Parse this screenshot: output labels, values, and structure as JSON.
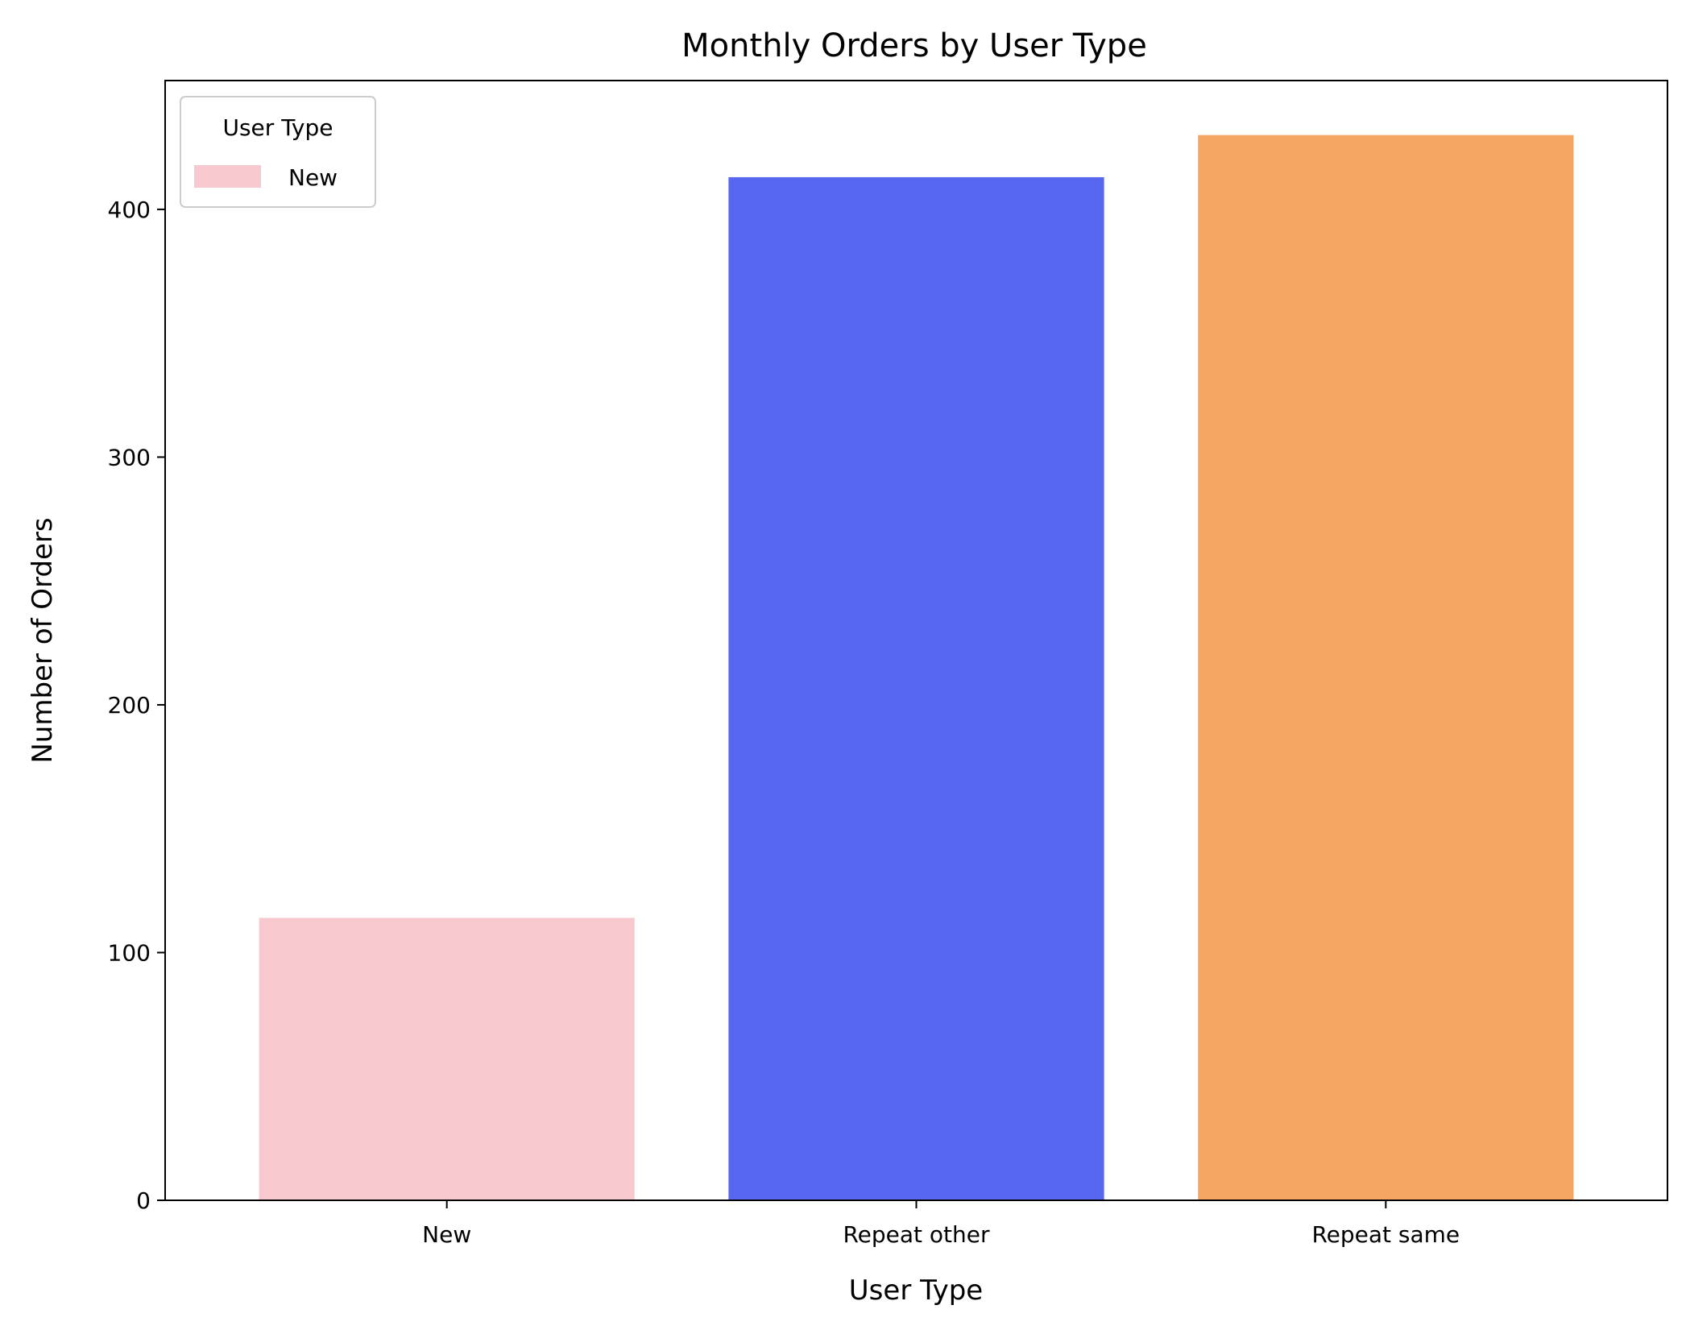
{
  "chart_data": {
    "type": "bar",
    "title": "Monthly Orders by User Type",
    "xlabel": "User Type",
    "ylabel": "Number of Orders",
    "categories": [
      "New",
      "Repeat other",
      "Repeat same"
    ],
    "values": [
      114,
      413,
      430
    ],
    "colors": [
      "#f7c9ce",
      "#5767f0",
      "#f7a563"
    ],
    "ylim": [
      0,
      452
    ],
    "yticks": [
      0,
      100,
      200,
      300,
      400
    ],
    "grid": false,
    "legend": {
      "title": "User Type",
      "placement": "top-left",
      "entries": [
        {
          "label": "New",
          "color": "#f7c9ce"
        }
      ]
    }
  }
}
